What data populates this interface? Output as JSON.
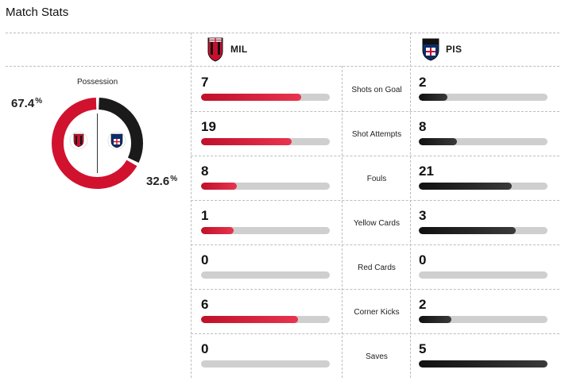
{
  "header": {
    "title": "Match Stats"
  },
  "teams": {
    "home": {
      "abbr": "MIL",
      "crest_icon": "ac-milan-crest-icon",
      "color": "#d1122f"
    },
    "away": {
      "abbr": "PIS",
      "crest_icon": "pisa-crest-icon",
      "color": "#1a1a1a"
    }
  },
  "possession": {
    "label": "Possession",
    "home_pct": "67.4",
    "away_pct": "32.6",
    "unit": "%",
    "home_value": 67.4,
    "away_value": 32.6
  },
  "stats": [
    {
      "label": "Shots on Goal",
      "home": "7",
      "away": "2"
    },
    {
      "label": "Shot Attempts",
      "home": "19",
      "away": "8"
    },
    {
      "label": "Fouls",
      "home": "8",
      "away": "21"
    },
    {
      "label": "Yellow Cards",
      "home": "1",
      "away": "3"
    },
    {
      "label": "Red Cards",
      "home": "0",
      "away": "0"
    },
    {
      "label": "Corner Kicks",
      "home": "6",
      "away": "2"
    },
    {
      "label": "Saves",
      "home": "0",
      "away": "5"
    }
  ]
}
